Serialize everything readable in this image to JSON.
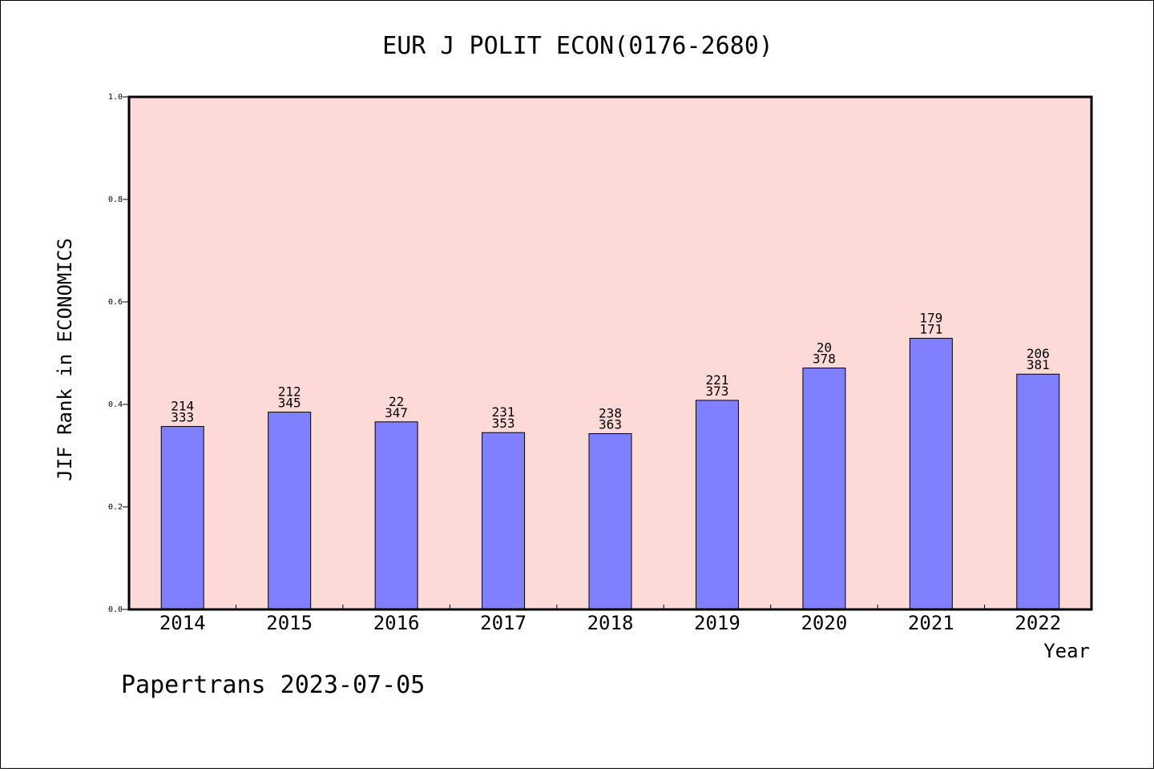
{
  "chart_data": {
    "type": "bar",
    "title": "EUR J POLIT ECON(0176-2680)",
    "xlabel": "Year",
    "ylabel": "JIF Rank in ECONOMICS",
    "ylim": [
      0,
      1
    ],
    "yticks": [
      "0.0",
      "0.2",
      "0.4",
      "0.6",
      "0.8",
      "1.0"
    ],
    "categories": [
      "2014",
      "2015",
      "2016",
      "2017",
      "2018",
      "2019",
      "2020",
      "2021",
      "2022"
    ],
    "values": [
      0.357,
      0.385,
      0.366,
      0.345,
      0.343,
      0.408,
      0.471,
      0.529,
      0.459
    ],
    "labels_top": [
      "214",
      "212",
      "22",
      "231",
      "238",
      "221",
      "20",
      "179",
      "206"
    ],
    "labels_bottom": [
      "333",
      "345",
      "347",
      "353",
      "363",
      "373",
      "378",
      "171",
      "381"
    ],
    "grid": false,
    "colors": {
      "bar": "#8080ff",
      "plot_bg": "#fddad7"
    }
  },
  "footer": "Papertrans 2023-07-05"
}
